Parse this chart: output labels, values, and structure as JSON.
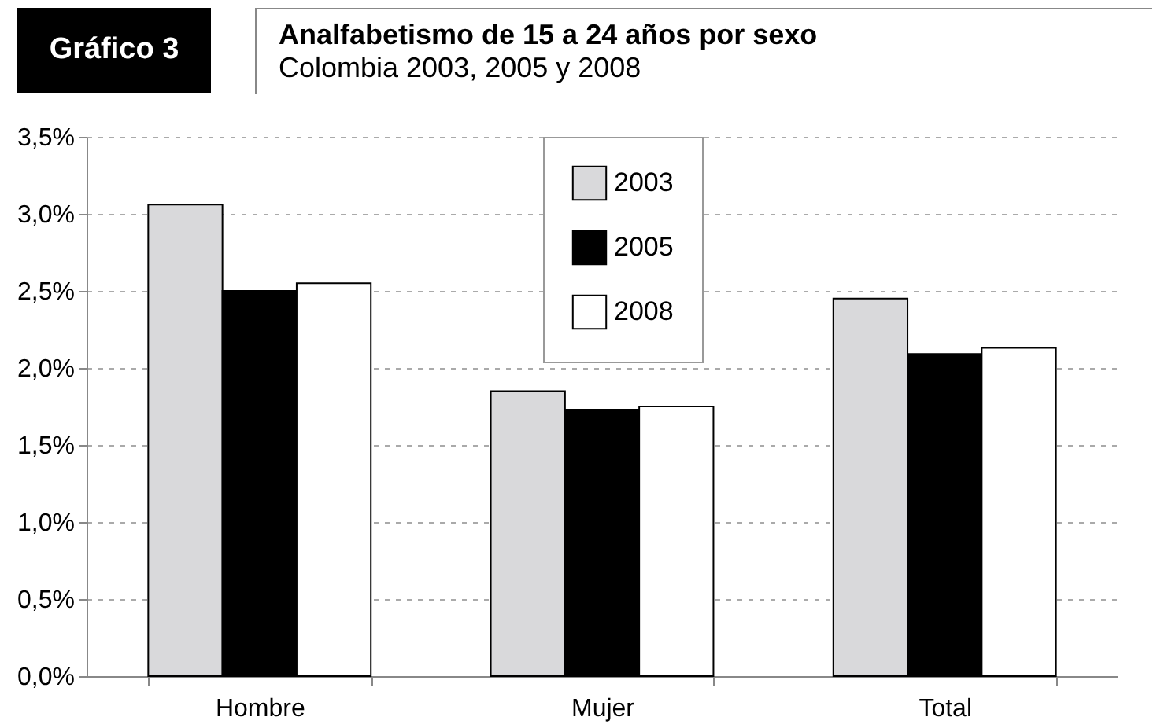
{
  "chart_data": {
    "type": "bar",
    "title": "Analfabetismo de 15 a 24 años por sexo",
    "subtitle": "Colombia 2003, 2005 y 2008",
    "annotations": [
      "Gráfico 3"
    ],
    "categories": [
      "Hombre",
      "Mujer",
      "Total"
    ],
    "series": [
      {
        "name": "2003",
        "color": "#d9d9db",
        "values": [
          3.06,
          1.85,
          2.45
        ]
      },
      {
        "name": "2005",
        "color": "#000000",
        "values": [
          2.5,
          1.73,
          2.09
        ]
      },
      {
        "name": "2008",
        "color": "#ffffff",
        "values": [
          2.55,
          1.75,
          2.13
        ]
      }
    ],
    "ylim": [
      0,
      3.5
    ],
    "yticks": [
      {
        "value": 0,
        "label": "0,0%"
      },
      {
        "value": 0.5,
        "label": "0,5%"
      },
      {
        "value": 1,
        "label": "1,0%"
      },
      {
        "value": 1.5,
        "label": "1,5%"
      },
      {
        "value": 2,
        "label": "2,0%"
      },
      {
        "value": 2.5,
        "label": "2,5%"
      },
      {
        "value": 3,
        "label": "3,0%"
      },
      {
        "value": 3.5,
        "label": "3,5%"
      }
    ],
    "grid": "y",
    "legend": "top"
  }
}
